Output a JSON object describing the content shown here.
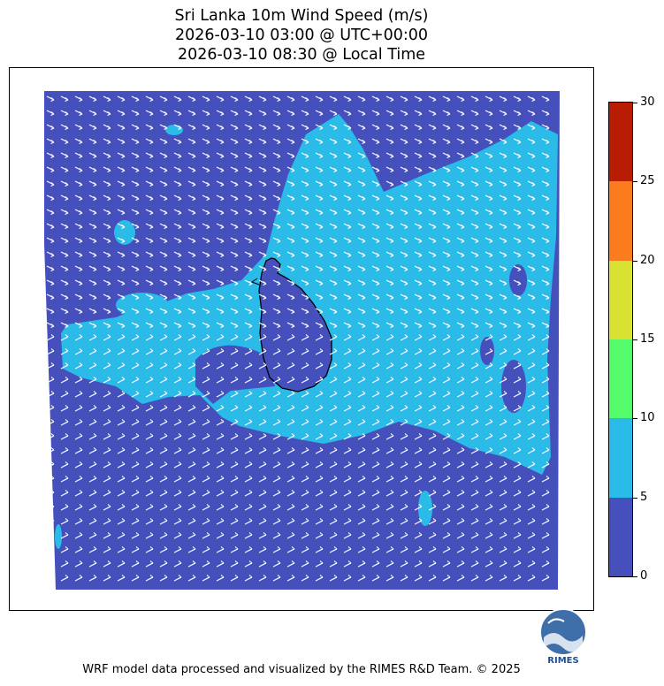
{
  "title": {
    "line1": "Sri Lanka 10m Wind Speed (m/s)",
    "line2": "2026-03-10 03:00 @ UTC+00:00",
    "line3": "2026-03-10 08:30 @ Local Time"
  },
  "colorbar": {
    "ticks": [
      "0",
      "5",
      "10",
      "15",
      "20",
      "25",
      "30"
    ],
    "bins": [
      {
        "min": 0,
        "max": 5,
        "color": "#4650bd"
      },
      {
        "min": 5,
        "max": 10,
        "color": "#2abbe8"
      },
      {
        "min": 10,
        "max": 15,
        "color": "#54fc6b"
      },
      {
        "min": 15,
        "max": 20,
        "color": "#d9e133"
      },
      {
        "min": 20,
        "max": 25,
        "color": "#fb7c1f"
      },
      {
        "min": 25,
        "max": 30,
        "color": "#b81c03"
      }
    ]
  },
  "logo": {
    "text": "RIMES"
  },
  "footer": "WRF model data processed and visualized by the RIMES R&D Team. © 2025"
}
